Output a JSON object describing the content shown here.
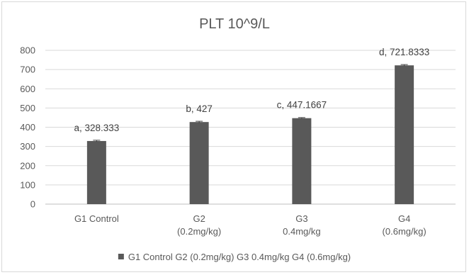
{
  "chart_data": {
    "type": "bar",
    "title": "PLT 10^9/L",
    "categories": [
      [
        "G1 Control"
      ],
      [
        "G2",
        "(0.2mg/kg)"
      ],
      [
        "G3",
        "0.4mg/kg"
      ],
      [
        "G4",
        "(0.6mg/kg)"
      ]
    ],
    "series": [
      {
        "values": [
          328.333,
          427,
          447.1667,
          721.8333
        ],
        "errors": [
          4,
          4,
          3,
          4
        ],
        "data_labels": [
          "a, 328.333",
          "b, 427",
          "c, 447.1667",
          "d, 721.8333"
        ]
      }
    ],
    "ylim": [
      0,
      800
    ],
    "yticks": [
      0,
      100,
      200,
      300,
      400,
      500,
      600,
      700,
      800
    ],
    "grid": true,
    "legend_position": "bottom",
    "legend_text": "G1 Control G2 (0.2mg/kg) G3 0.4mg/kg G4 (0.6mg/kg)",
    "colors": {
      "bar": "#595959",
      "grid": "#d9d9d9",
      "text": "#595959"
    }
  }
}
